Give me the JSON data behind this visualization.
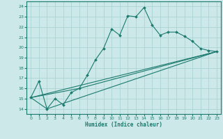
{
  "xlabel": "Humidex (Indice chaleur)",
  "bg_color": "#cce8e8",
  "line_color": "#1a7a6e",
  "grid_color": "#aad4d4",
  "xlim": [
    -0.5,
    23.5
  ],
  "ylim": [
    13.5,
    24.5
  ],
  "xticks": [
    0,
    1,
    2,
    3,
    4,
    5,
    6,
    7,
    8,
    9,
    10,
    11,
    12,
    13,
    14,
    15,
    16,
    17,
    18,
    19,
    20,
    21,
    22,
    23
  ],
  "yticks": [
    14,
    15,
    16,
    17,
    18,
    19,
    20,
    21,
    22,
    23,
    24
  ],
  "line1_x": [
    0,
    1,
    2,
    3,
    4,
    5,
    6,
    7,
    8,
    9,
    10,
    11,
    12,
    13,
    14,
    15,
    16,
    17,
    18,
    19,
    20,
    21,
    22,
    23
  ],
  "line1_y": [
    15.1,
    16.7,
    14.0,
    15.0,
    14.4,
    15.6,
    16.0,
    17.3,
    18.8,
    19.9,
    21.8,
    21.2,
    23.1,
    23.0,
    23.9,
    22.2,
    21.2,
    21.5,
    21.5,
    21.1,
    20.6,
    19.9,
    19.7,
    19.6
  ],
  "line2_x": [
    0,
    23
  ],
  "line2_y": [
    15.1,
    19.6
  ],
  "line3_x": [
    0,
    2,
    23
  ],
  "line3_y": [
    15.1,
    14.0,
    19.6
  ],
  "line4_x": [
    0,
    6,
    23
  ],
  "line4_y": [
    15.1,
    16.0,
    19.6
  ]
}
